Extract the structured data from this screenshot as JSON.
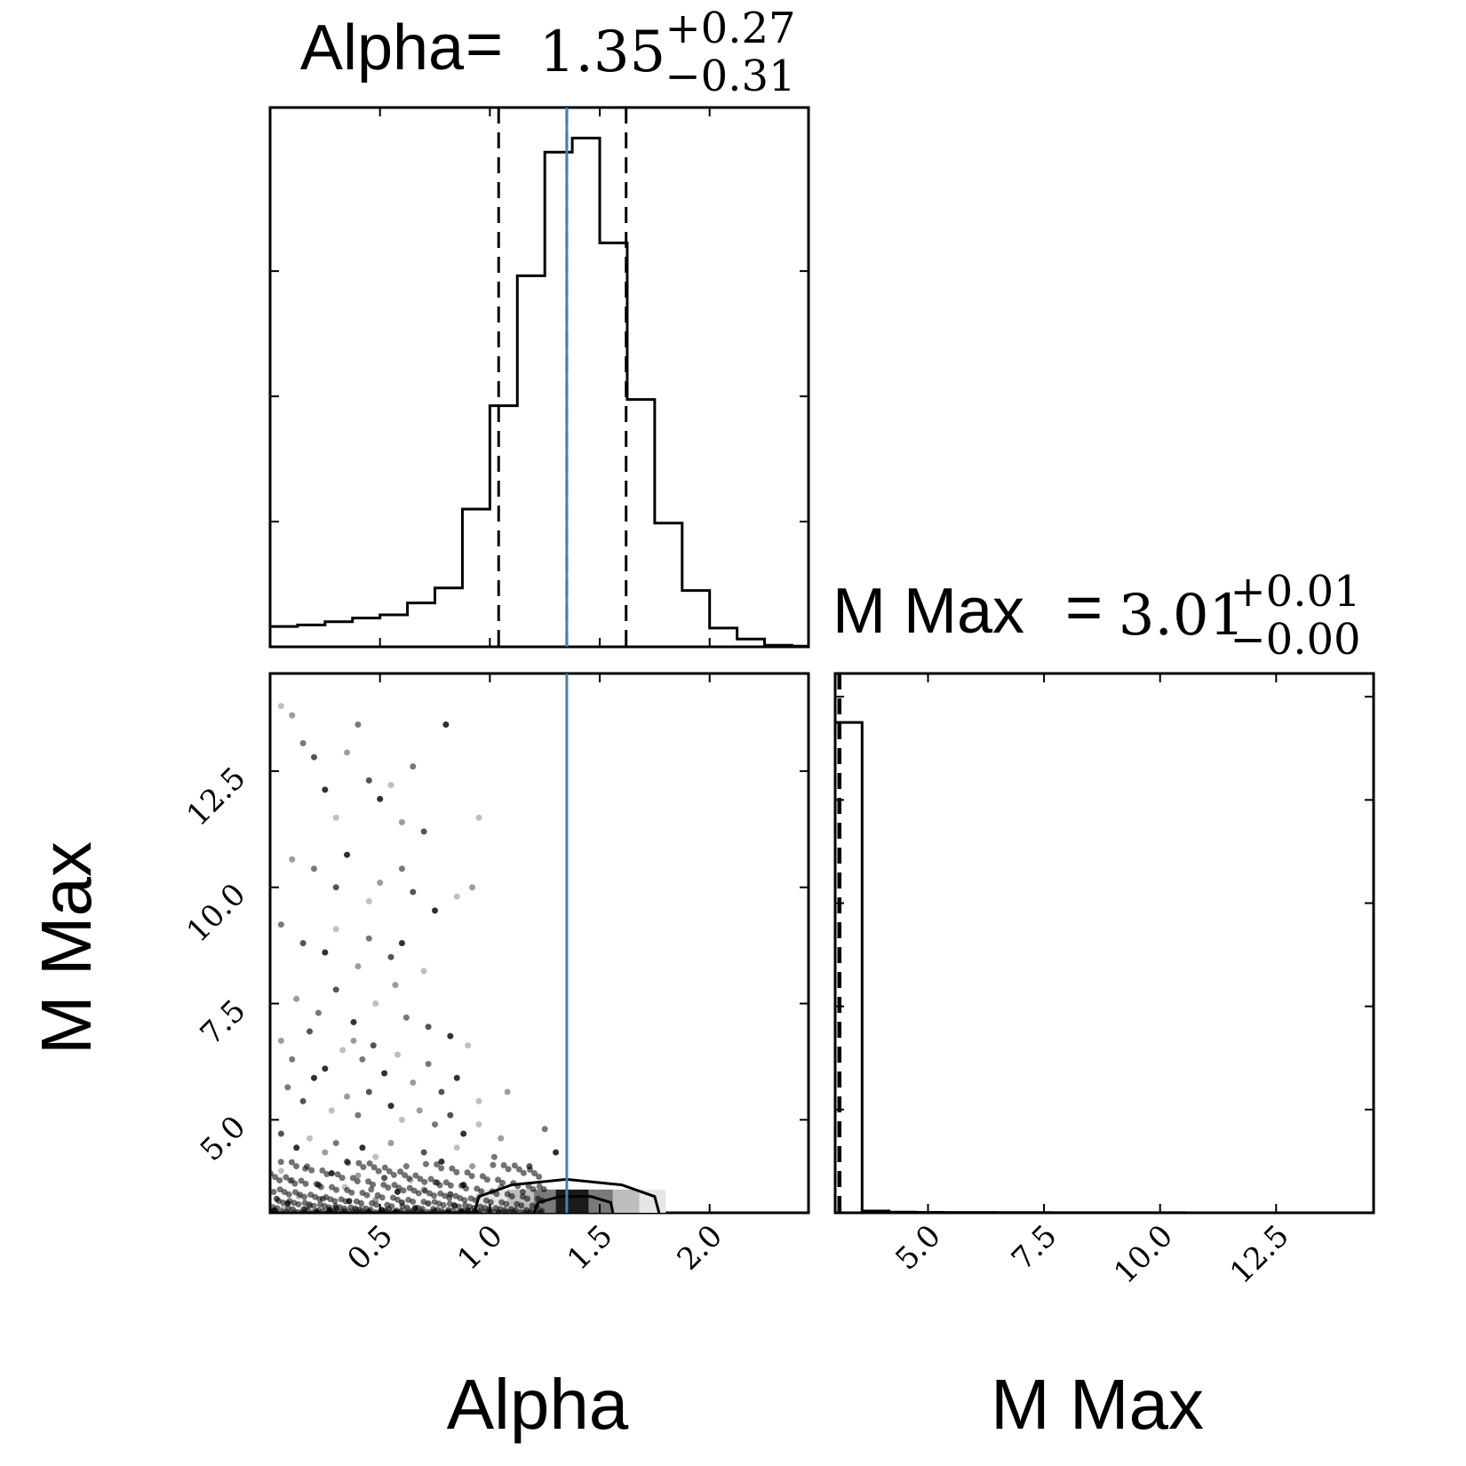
{
  "chart_data": {
    "type": "corner",
    "colors": {
      "line": "#000000",
      "truth": "#4682b4",
      "frame": "#000000"
    },
    "parameters": [
      "Alpha",
      "M Max"
    ],
    "axes": {
      "alpha": {
        "range": [
          0.0,
          2.45
        ],
        "ticks": [
          0.5,
          1.0,
          1.5,
          2.0
        ],
        "tick_labels": [
          "0.5",
          "1.0",
          "1.5",
          "2.0"
        ],
        "label": "Alpha"
      },
      "mmax": {
        "range": [
          3.0,
          14.6
        ],
        "ticks": [
          5.0,
          7.5,
          10.0,
          12.5
        ],
        "tick_labels": [
          "5.0",
          "7.5",
          "10.0",
          "12.5"
        ],
        "label": "M Max"
      }
    },
    "titles": {
      "alpha": {
        "name": "Alpha",
        "value": "1.35",
        "plus": "+0.27",
        "minus": "−0.31"
      },
      "mmax": {
        "name": "M Max",
        "value": "3.01",
        "plus": "+0.01",
        "minus": "−0.00"
      }
    },
    "alpha_hist": {
      "bin_edges": [
        0.0,
        0.125,
        0.25,
        0.375,
        0.5,
        0.625,
        0.75,
        0.875,
        1.0,
        1.125,
        1.25,
        1.375,
        1.5,
        1.625,
        1.75,
        1.875,
        2.0,
        2.125,
        2.25,
        2.375,
        2.45
      ],
      "counts": [
        65,
        70,
        80,
        92,
        102,
        140,
        188,
        440,
        770,
        1185,
        1580,
        1625,
        1290,
        790,
        395,
        180,
        60,
        25,
        5,
        2
      ],
      "quantiles": [
        1.04,
        1.35,
        1.62
      ],
      "truth": 1.35
    },
    "mmax_hist": {
      "bin_edges": [
        3.0,
        3.58,
        4.16,
        4.74,
        5.32,
        5.9,
        6.48,
        7.06,
        7.64,
        8.22,
        8.8,
        9.38,
        9.96,
        10.54,
        11.12,
        11.7,
        12.28,
        12.86,
        13.44,
        14.02,
        14.6
      ],
      "counts": [
        9500,
        35,
        12,
        8,
        7,
        6,
        5,
        4,
        3,
        3,
        2,
        2,
        2,
        1,
        1,
        1,
        1,
        1,
        1,
        1
      ],
      "quantiles": [
        3.01,
        3.01,
        3.02
      ]
    },
    "scatter": {
      "points": [
        [
          0.05,
          13.9
        ],
        [
          0.1,
          13.7
        ],
        [
          0.15,
          13.1
        ],
        [
          0.2,
          12.8
        ],
        [
          0.25,
          12.1
        ],
        [
          0.3,
          11.5
        ],
        [
          0.35,
          12.9
        ],
        [
          0.4,
          13.5
        ],
        [
          0.45,
          12.3
        ],
        [
          0.5,
          11.9
        ],
        [
          0.55,
          12.2
        ],
        [
          0.6,
          11.4
        ],
        [
          0.65,
          12.6
        ],
        [
          0.7,
          11.2
        ],
        [
          0.8,
          13.5
        ],
        [
          0.95,
          11.5
        ],
        [
          0.1,
          10.6
        ],
        [
          0.2,
          10.4
        ],
        [
          0.3,
          10.0
        ],
        [
          0.35,
          10.7
        ],
        [
          0.45,
          9.7
        ],
        [
          0.5,
          10.1
        ],
        [
          0.6,
          10.4
        ],
        [
          0.65,
          9.9
        ],
        [
          0.75,
          9.5
        ],
        [
          0.85,
          9.8
        ],
        [
          0.92,
          10.0
        ],
        [
          0.05,
          9.2
        ],
        [
          0.15,
          8.8
        ],
        [
          0.25,
          8.6
        ],
        [
          0.3,
          9.1
        ],
        [
          0.4,
          8.3
        ],
        [
          0.45,
          8.9
        ],
        [
          0.55,
          8.5
        ],
        [
          0.6,
          8.8
        ],
        [
          0.7,
          8.2
        ],
        [
          0.12,
          7.6
        ],
        [
          0.22,
          7.3
        ],
        [
          0.3,
          7.8
        ],
        [
          0.38,
          7.1
        ],
        [
          0.48,
          7.5
        ],
        [
          0.57,
          7.9
        ],
        [
          0.62,
          7.2
        ],
        [
          0.72,
          7.0
        ],
        [
          0.82,
          6.8
        ],
        [
          0.9,
          6.6
        ],
        [
          0.05,
          6.7
        ],
        [
          0.1,
          6.3
        ],
        [
          0.18,
          6.9
        ],
        [
          0.25,
          6.1
        ],
        [
          0.33,
          6.5
        ],
        [
          0.38,
          6.7
        ],
        [
          0.42,
          6.3
        ],
        [
          0.47,
          6.6
        ],
        [
          0.52,
          6.0
        ],
        [
          0.58,
          6.4
        ],
        [
          0.65,
          5.8
        ],
        [
          0.72,
          6.2
        ],
        [
          0.78,
          5.6
        ],
        [
          0.85,
          5.9
        ],
        [
          0.95,
          5.4
        ],
        [
          1.08,
          5.6
        ],
        [
          0.08,
          5.7
        ],
        [
          0.15,
          5.4
        ],
        [
          0.2,
          5.9
        ],
        [
          0.28,
          5.2
        ],
        [
          0.35,
          5.5
        ],
        [
          0.4,
          5.1
        ],
        [
          0.45,
          5.6
        ],
        [
          0.55,
          5.3
        ],
        [
          0.6,
          5.0
        ],
        [
          0.68,
          5.2
        ],
        [
          0.75,
          4.9
        ],
        [
          0.82,
          5.1
        ],
        [
          0.88,
          4.7
        ],
        [
          0.95,
          4.9
        ],
        [
          1.05,
          4.6
        ],
        [
          1.25,
          4.8
        ],
        [
          0.05,
          4.7
        ],
        [
          0.12,
          4.4
        ],
        [
          0.18,
          4.6
        ],
        [
          0.25,
          4.3
        ],
        [
          0.3,
          4.5
        ],
        [
          0.35,
          4.1
        ],
        [
          0.42,
          4.4
        ],
        [
          0.48,
          4.2
        ],
        [
          0.55,
          4.5
        ],
        [
          0.62,
          4.0
        ],
        [
          0.7,
          4.3
        ],
        [
          0.78,
          4.1
        ],
        [
          0.85,
          4.4
        ],
        [
          0.92,
          4.0
        ],
        [
          1.02,
          4.2
        ],
        [
          1.18,
          4.0
        ],
        [
          1.3,
          4.3
        ],
        [
          0.05,
          3.9
        ],
        [
          0.1,
          3.7
        ],
        [
          0.16,
          3.95
        ],
        [
          0.22,
          3.6
        ],
        [
          0.28,
          3.85
        ],
        [
          0.34,
          3.55
        ],
        [
          0.4,
          3.8
        ],
        [
          0.46,
          3.5
        ],
        [
          0.52,
          3.75
        ],
        [
          0.58,
          3.45
        ],
        [
          0.64,
          3.7
        ],
        [
          0.7,
          3.5
        ],
        [
          0.76,
          3.65
        ],
        [
          0.82,
          3.4
        ],
        [
          0.88,
          3.6
        ],
        [
          0.95,
          3.35
        ],
        [
          1.05,
          3.55
        ],
        [
          1.15,
          3.45
        ],
        [
          0.03,
          3.3
        ],
        [
          0.08,
          3.2
        ],
        [
          0.13,
          3.35
        ],
        [
          0.18,
          3.15
        ],
        [
          0.24,
          3.3
        ],
        [
          0.3,
          3.1
        ],
        [
          0.36,
          3.25
        ],
        [
          0.42,
          3.12
        ],
        [
          0.48,
          3.28
        ],
        [
          0.54,
          3.08
        ],
        [
          0.6,
          3.22
        ],
        [
          0.66,
          3.1
        ],
        [
          0.72,
          3.2
        ],
        [
          0.78,
          3.05
        ],
        [
          0.84,
          3.15
        ],
        [
          0.9,
          3.05
        ],
        [
          0.02,
          3.05
        ],
        [
          0.06,
          3.1
        ],
        [
          0.11,
          3.02
        ],
        [
          0.16,
          3.08
        ],
        [
          0.21,
          3.03
        ],
        [
          0.27,
          3.06
        ],
        [
          0.33,
          3.02
        ],
        [
          0.39,
          3.07
        ],
        [
          0.45,
          3.03
        ],
        [
          0.51,
          3.05
        ],
        [
          0.57,
          3.02
        ],
        [
          0.63,
          3.06
        ],
        [
          0.69,
          3.03
        ],
        [
          0.75,
          3.04
        ],
        [
          0.81,
          3.02
        ],
        [
          0.87,
          3.03
        ]
      ],
      "density_cells": [
        [
          0.95,
          1.08,
          1
        ],
        [
          1.08,
          1.2,
          2
        ],
        [
          1.2,
          1.3,
          3
        ],
        [
          1.3,
          1.45,
          4
        ],
        [
          1.45,
          1.56,
          3
        ],
        [
          1.56,
          1.68,
          2
        ],
        [
          1.68,
          1.8,
          1
        ]
      ],
      "contours": [
        [
          [
            0.93,
            3.0
          ],
          [
            0.95,
            3.35
          ],
          [
            1.1,
            3.6
          ],
          [
            1.35,
            3.72
          ],
          [
            1.6,
            3.6
          ],
          [
            1.75,
            3.35
          ],
          [
            1.77,
            3.0
          ]
        ],
        [
          [
            1.2,
            3.0
          ],
          [
            1.22,
            3.22
          ],
          [
            1.32,
            3.35
          ],
          [
            1.46,
            3.35
          ],
          [
            1.55,
            3.22
          ],
          [
            1.56,
            3.0
          ]
        ]
      ]
    }
  }
}
